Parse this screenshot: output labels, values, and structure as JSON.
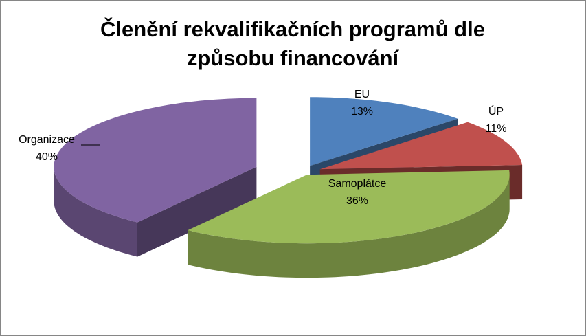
{
  "chart_data": {
    "type": "pie3d",
    "title": "Členění rekvalifikačních programů dle způsobu financování",
    "categories": [
      "EU",
      "ÚP",
      "Samoplátce",
      "Organizace"
    ],
    "values": [
      13,
      11,
      36,
      40
    ],
    "value_labels": [
      "13%",
      "11%",
      "36%",
      "40%"
    ],
    "colors": [
      "#4f81bd",
      "#c0504d",
      "#9bbb59",
      "#8064a2"
    ]
  }
}
